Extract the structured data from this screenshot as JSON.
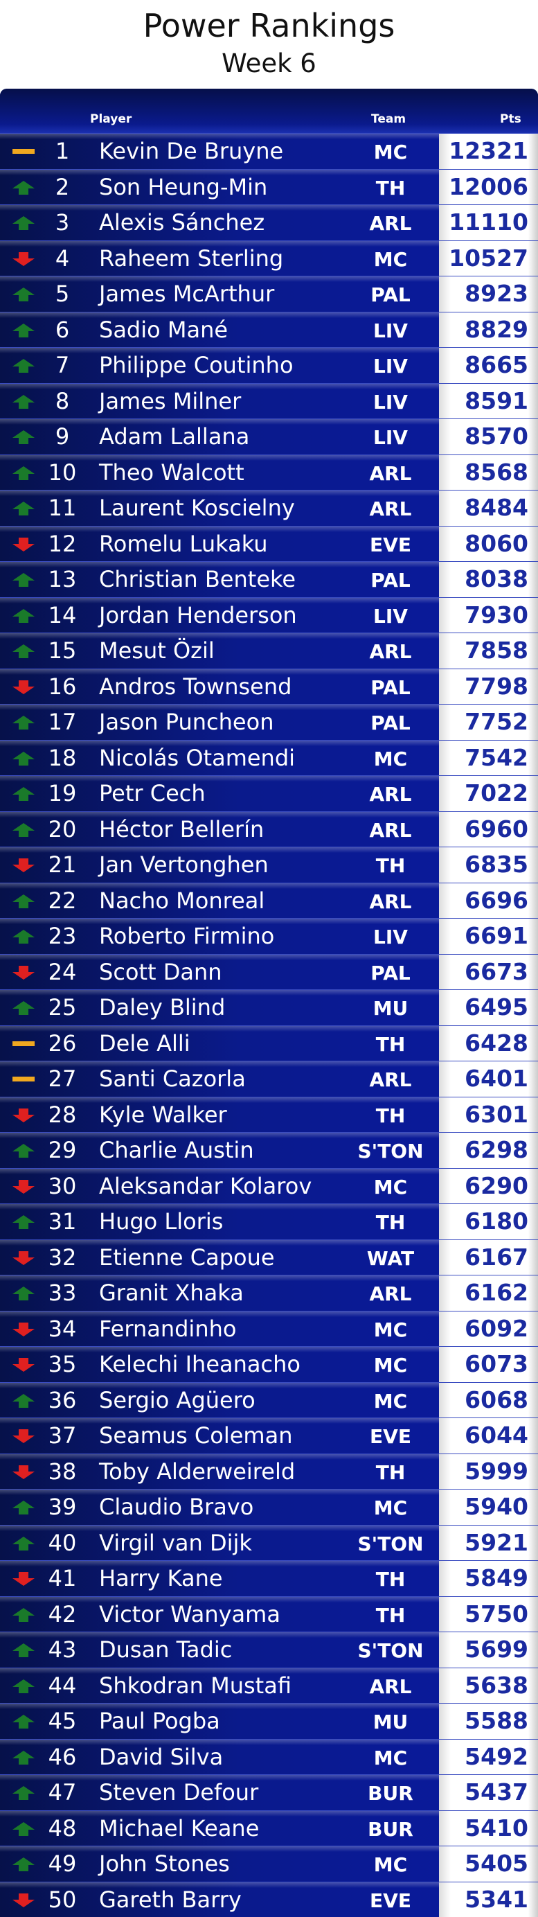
{
  "header": {
    "title": "Power Rankings",
    "subtitle": "Week 6"
  },
  "columns": {
    "player": "Player",
    "team": "Team",
    "pts": "Pts"
  },
  "colors": {
    "up": "#1a7a2a",
    "down": "#e02020",
    "same": "#f0a820",
    "pts_text": "#1a2aa0",
    "row_bg": "#0a1a8c"
  },
  "rows": [
    {
      "rank": "1",
      "movement": "same",
      "player": "Kevin De Bruyne",
      "team": "MC",
      "pts": "12321"
    },
    {
      "rank": "2",
      "movement": "up",
      "player": "Son Heung-Min",
      "team": "TH",
      "pts": "12006"
    },
    {
      "rank": "3",
      "movement": "up",
      "player": "Alexis Sánchez",
      "team": "ARL",
      "pts": "11110"
    },
    {
      "rank": "4",
      "movement": "down",
      "player": "Raheem Sterling",
      "team": "MC",
      "pts": "10527"
    },
    {
      "rank": "5",
      "movement": "up",
      "player": "James McArthur",
      "team": "PAL",
      "pts": "8923"
    },
    {
      "rank": "6",
      "movement": "up",
      "player": "Sadio Mané",
      "team": "LIV",
      "pts": "8829"
    },
    {
      "rank": "7",
      "movement": "up",
      "player": "Philippe Coutinho",
      "team": "LIV",
      "pts": "8665"
    },
    {
      "rank": "8",
      "movement": "up",
      "player": "James Milner",
      "team": "LIV",
      "pts": "8591"
    },
    {
      "rank": "9",
      "movement": "up",
      "player": "Adam Lallana",
      "team": "LIV",
      "pts": "8570"
    },
    {
      "rank": "10",
      "movement": "up",
      "player": "Theo Walcott",
      "team": "ARL",
      "pts": "8568"
    },
    {
      "rank": "11",
      "movement": "up",
      "player": "Laurent Koscielny",
      "team": "ARL",
      "pts": "8484"
    },
    {
      "rank": "12",
      "movement": "down",
      "player": "Romelu Lukaku",
      "team": "EVE",
      "pts": "8060"
    },
    {
      "rank": "13",
      "movement": "up",
      "player": "Christian Benteke",
      "team": "PAL",
      "pts": "8038"
    },
    {
      "rank": "14",
      "movement": "up",
      "player": "Jordan Henderson",
      "team": "LIV",
      "pts": "7930"
    },
    {
      "rank": "15",
      "movement": "up",
      "player": "Mesut Özil",
      "team": "ARL",
      "pts": "7858"
    },
    {
      "rank": "16",
      "movement": "down",
      "player": "Andros Townsend",
      "team": "PAL",
      "pts": "7798"
    },
    {
      "rank": "17",
      "movement": "up",
      "player": "Jason Puncheon",
      "team": "PAL",
      "pts": "7752"
    },
    {
      "rank": "18",
      "movement": "up",
      "player": "Nicolás Otamendi",
      "team": "MC",
      "pts": "7542"
    },
    {
      "rank": "19",
      "movement": "up",
      "player": "Petr Cech",
      "team": "ARL",
      "pts": "7022"
    },
    {
      "rank": "20",
      "movement": "up",
      "player": "Héctor Bellerín",
      "team": "ARL",
      "pts": "6960"
    },
    {
      "rank": "21",
      "movement": "down",
      "player": "Jan Vertonghen",
      "team": "TH",
      "pts": "6835"
    },
    {
      "rank": "22",
      "movement": "up",
      "player": "Nacho Monreal",
      "team": "ARL",
      "pts": "6696"
    },
    {
      "rank": "23",
      "movement": "up",
      "player": "Roberto Firmino",
      "team": "LIV",
      "pts": "6691"
    },
    {
      "rank": "24",
      "movement": "down",
      "player": "Scott Dann",
      "team": "PAL",
      "pts": "6673"
    },
    {
      "rank": "25",
      "movement": "up",
      "player": "Daley Blind",
      "team": "MU",
      "pts": "6495"
    },
    {
      "rank": "26",
      "movement": "same",
      "player": "Dele Alli",
      "team": "TH",
      "pts": "6428"
    },
    {
      "rank": "27",
      "movement": "same",
      "player": "Santi Cazorla",
      "team": "ARL",
      "pts": "6401"
    },
    {
      "rank": "28",
      "movement": "down",
      "player": "Kyle Walker",
      "team": "TH",
      "pts": "6301"
    },
    {
      "rank": "29",
      "movement": "up",
      "player": "Charlie Austin",
      "team": "S'TON",
      "pts": "6298"
    },
    {
      "rank": "30",
      "movement": "down",
      "player": "Aleksandar Kolarov",
      "team": "MC",
      "pts": "6290"
    },
    {
      "rank": "31",
      "movement": "up",
      "player": "Hugo Lloris",
      "team": "TH",
      "pts": "6180"
    },
    {
      "rank": "32",
      "movement": "down",
      "player": "Etienne Capoue",
      "team": "WAT",
      "pts": "6167"
    },
    {
      "rank": "33",
      "movement": "up",
      "player": "Granit Xhaka",
      "team": "ARL",
      "pts": "6162"
    },
    {
      "rank": "34",
      "movement": "down",
      "player": "Fernandinho",
      "team": "MC",
      "pts": "6092"
    },
    {
      "rank": "35",
      "movement": "down",
      "player": "Kelechi Iheanacho",
      "team": "MC",
      "pts": "6073"
    },
    {
      "rank": "36",
      "movement": "up",
      "player": "Sergio Agüero",
      "team": "MC",
      "pts": "6068"
    },
    {
      "rank": "37",
      "movement": "down",
      "player": "Seamus Coleman",
      "team": "EVE",
      "pts": "6044"
    },
    {
      "rank": "38",
      "movement": "down",
      "player": "Toby Alderweireld",
      "team": "TH",
      "pts": "5999"
    },
    {
      "rank": "39",
      "movement": "up",
      "player": "Claudio Bravo",
      "team": "MC",
      "pts": "5940"
    },
    {
      "rank": "40",
      "movement": "up",
      "player": "Virgil van Dijk",
      "team": "S'TON",
      "pts": "5921"
    },
    {
      "rank": "41",
      "movement": "down",
      "player": "Harry Kane",
      "team": "TH",
      "pts": "5849"
    },
    {
      "rank": "42",
      "movement": "up",
      "player": "Victor Wanyama",
      "team": "TH",
      "pts": "5750"
    },
    {
      "rank": "43",
      "movement": "up",
      "player": "Dusan Tadic",
      "team": "S'TON",
      "pts": "5699"
    },
    {
      "rank": "44",
      "movement": "up",
      "player": "Shkodran Mustafi",
      "team": "ARL",
      "pts": "5638"
    },
    {
      "rank": "45",
      "movement": "up",
      "player": "Paul Pogba",
      "team": "MU",
      "pts": "5588"
    },
    {
      "rank": "46",
      "movement": "up",
      "player": "David Silva",
      "team": "MC",
      "pts": "5492"
    },
    {
      "rank": "47",
      "movement": "up",
      "player": "Steven Defour",
      "team": "BUR",
      "pts": "5437"
    },
    {
      "rank": "48",
      "movement": "up",
      "player": "Michael Keane",
      "team": "BUR",
      "pts": "5410"
    },
    {
      "rank": "49",
      "movement": "up",
      "player": "John Stones",
      "team": "MC",
      "pts": "5405"
    },
    {
      "rank": "50",
      "movement": "down",
      "player": "Gareth Barry",
      "team": "EVE",
      "pts": "5341"
    }
  ]
}
